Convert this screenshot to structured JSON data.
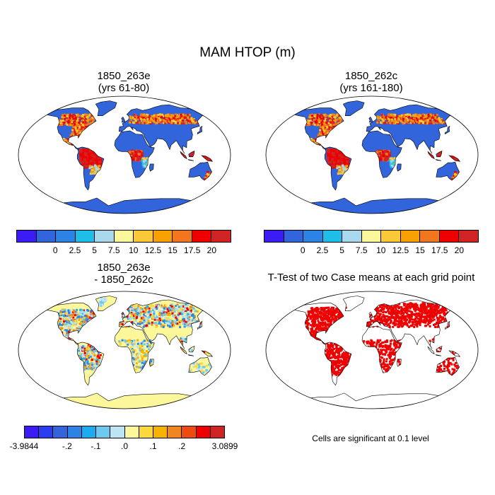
{
  "figure": {
    "title": "MAM HTOP (m)"
  },
  "panels": [
    {
      "id": "case-a",
      "title_line1": "1850_263e",
      "title_line2": "(yrs 61-80)",
      "colorbar": {
        "colors": [
          "#3c1cf5",
          "#3264dc",
          "#2d82e6",
          "#1ebee8",
          "#a8d7ee",
          "#fdf79b",
          "#fbc836",
          "#f7a000",
          "#f2761e",
          "#ee0000",
          "#d02424"
        ],
        "labels": [
          "0",
          "2.5",
          "5",
          "7.5",
          "10",
          "12.5",
          "15",
          "17.5",
          "20"
        ]
      }
    },
    {
      "id": "case-b",
      "title_line1": "1850_262c",
      "title_line2": "(yrs 161-180)",
      "colorbar": {
        "colors": [
          "#3c1cf5",
          "#3264dc",
          "#2d82e6",
          "#1ebee8",
          "#a8d7ee",
          "#fdf79b",
          "#fbc836",
          "#f7a000",
          "#f2761e",
          "#ee0000",
          "#d02424"
        ],
        "labels": [
          "0",
          "2.5",
          "5",
          "7.5",
          "10",
          "12.5",
          "15",
          "17.5",
          "20"
        ]
      }
    },
    {
      "id": "difference",
      "title_line1": "1850_263e",
      "title_line2": "- 1850_262c",
      "colorbar": {
        "colors": [
          "#3c1cf5",
          "#2a3ef0",
          "#3264dc",
          "#2d82e6",
          "#1eaaf0",
          "#6dc8f0",
          "#bde4f5",
          "#fdf79b",
          "#fbd93d",
          "#f7b200",
          "#f2861e",
          "#ee4a10",
          "#ee0000",
          "#d02424"
        ],
        "labels": [
          "-3.9844",
          "-.2",
          "-.1",
          ".0",
          ".1",
          ".2",
          "3.0899"
        ]
      }
    },
    {
      "id": "ttest",
      "title_line1": "T-Test of two Case means at each grid point",
      "note": "Cells are significant at 0.1 level",
      "significant_color": "#ee0000"
    }
  ],
  "colors": {
    "ocean": "#ffffff",
    "coast": "#000000"
  }
}
